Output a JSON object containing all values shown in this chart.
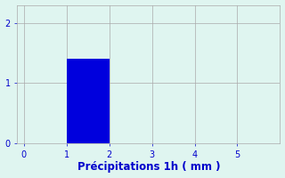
{
  "bar_x": 1,
  "bar_height": 1.4,
  "bar_width": 1.0,
  "bar_color": "#0000dd",
  "bg_color": "#dff5f0",
  "xlabel": "Précipitations 1h ( mm )",
  "xlim": [
    -0.15,
    6.0
  ],
  "ylim": [
    0,
    2.3
  ],
  "xticks": [
    0,
    1,
    2,
    3,
    4,
    5
  ],
  "yticks": [
    0,
    1,
    2
  ],
  "grid_color": "#aaaaaa",
  "label_color": "#0000cc",
  "tick_fontsize": 7,
  "xlabel_fontsize": 8.5
}
